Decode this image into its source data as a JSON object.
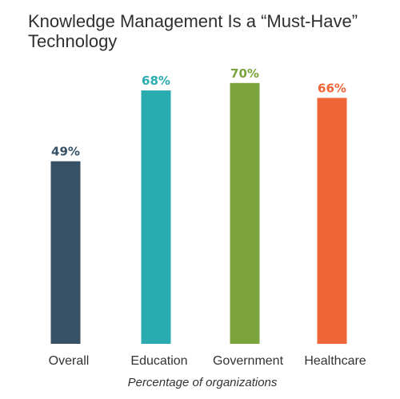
{
  "chart_data": {
    "type": "bar",
    "title": "Knowledge Management Is a “Must-Have” Technology",
    "categories": [
      "Overall",
      "Education",
      "Government",
      "Healthcare"
    ],
    "values": [
      49,
      68,
      70,
      66
    ],
    "value_labels": [
      "49%",
      "68%",
      "70%",
      "66%"
    ],
    "colors": [
      "#375266",
      "#2aabb0",
      "#7ba43d",
      "#ef6537"
    ],
    "xlabel": "Percentage of organizations",
    "ylabel": "",
    "ylim": [
      0,
      100
    ],
    "grid": false,
    "legend": "none"
  }
}
